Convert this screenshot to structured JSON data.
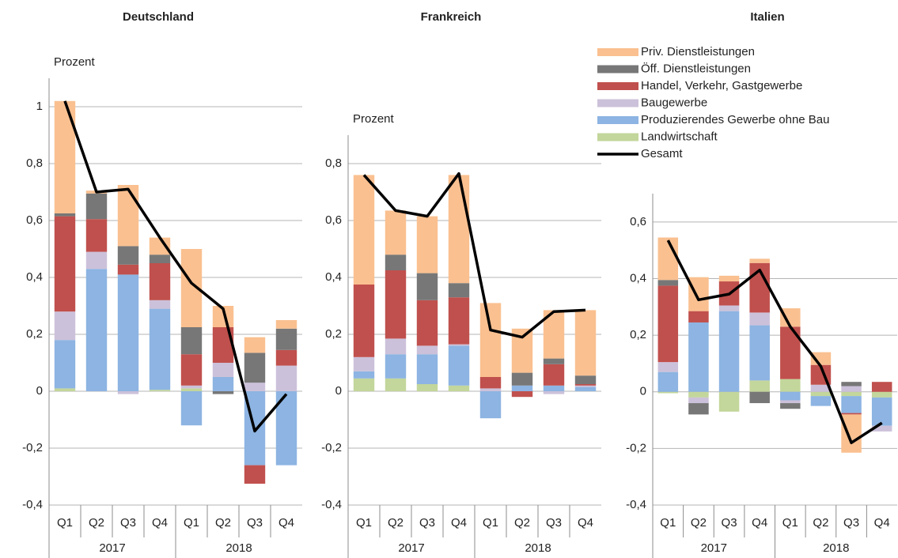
{
  "chart_data": [
    {
      "type": "bar",
      "stacked": true,
      "title": "Deutschland",
      "y_label": "Prozent",
      "categories": [
        "Q1",
        "Q2",
        "Q3",
        "Q4",
        "Q1",
        "Q2",
        "Q3",
        "Q4"
      ],
      "groups": [
        "2017",
        "2018"
      ],
      "ylim": [
        -0.4,
        1.1
      ],
      "yticks": [
        {
          "value": -0.4,
          "label": "-0,4"
        },
        {
          "value": -0.2,
          "label": "-0,2"
        },
        0,
        {
          "value": 0.2,
          "label": "0,2"
        },
        {
          "value": 0.4,
          "label": "0,4"
        },
        {
          "value": 0.6,
          "label": "0,6"
        },
        {
          "value": 0.8,
          "label": "0,8"
        },
        1
      ],
      "grid": true,
      "series": [
        {
          "color": "#fac090",
          "values": [
            0.395,
            0.01,
            0.215,
            0.06,
            0.275,
            0.075,
            0.055,
            0.03
          ]
        },
        {
          "color": "#777777",
          "values": [
            0.01,
            0.09,
            0.065,
            0.03,
            0.095,
            -0.01,
            0.105,
            0.075
          ]
        },
        {
          "color": "#c0504d",
          "values": [
            0.335,
            0.115,
            0.035,
            0.13,
            0.11,
            0.125,
            -0.065,
            0.055
          ]
        },
        {
          "color": "#ccc1da",
          "values": [
            0.1,
            0.06,
            -0.01,
            0.03,
            0.01,
            0.05,
            0.03,
            0.09
          ]
        },
        {
          "color": "#8db4e2",
          "values": [
            0.17,
            0.43,
            0.41,
            0.285,
            -0.12,
            0.05,
            -0.26,
            -0.26
          ]
        },
        {
          "color": "#c3d69b",
          "values": [
            0.01,
            0,
            0,
            0.005,
            0.01,
            0,
            0,
            0
          ]
        },
        {
          "type": "line",
          "color": "#000000",
          "values": [
            1.02,
            0.7,
            0.71,
            0.54,
            0.38,
            0.29,
            -0.14,
            -0.01
          ]
        }
      ]
    },
    {
      "type": "bar",
      "stacked": true,
      "title": "Frankreich",
      "y_label": "Prozent",
      "categories": [
        "Q1",
        "Q2",
        "Q3",
        "Q4",
        "Q1",
        "Q2",
        "Q3",
        "Q4"
      ],
      "groups": [
        "2017",
        "2018"
      ],
      "ylim": [
        -0.4,
        0.9
      ],
      "yticks": [
        {
          "value": -0.4,
          "label": "-0,4"
        },
        {
          "value": -0.2,
          "label": "-0,2"
        },
        0,
        {
          "value": 0.2,
          "label": "0,2"
        },
        {
          "value": 0.4,
          "label": "0,4"
        },
        {
          "value": 0.6,
          "label": "0,6"
        },
        {
          "value": 0.8,
          "label": "0,8"
        }
      ],
      "grid": true,
      "series": [
        {
          "color": "#fac090",
          "values": [
            0.385,
            0.155,
            0.2,
            0.38,
            0.26,
            0.155,
            0.17,
            0.23
          ]
        },
        {
          "color": "#777777",
          "values": [
            0,
            0.055,
            0.095,
            0.05,
            0,
            0.045,
            0.02,
            0.03
          ]
        },
        {
          "color": "#c0504d",
          "values": [
            0.255,
            0.24,
            0.16,
            0.165,
            0.04,
            -0.02,
            0.075,
            0.005
          ]
        },
        {
          "color": "#ccc1da",
          "values": [
            0.05,
            0.055,
            0.03,
            0.005,
            0.01,
            0,
            -0.01,
            0.005
          ]
        },
        {
          "color": "#8db4e2",
          "values": [
            0.025,
            0.085,
            0.105,
            0.14,
            -0.095,
            0.02,
            0.02,
            0.015
          ]
        },
        {
          "color": "#c3d69b",
          "values": [
            0.045,
            0.045,
            0.025,
            0.02,
            0,
            0,
            0,
            0
          ]
        },
        {
          "type": "line",
          "color": "#000000",
          "values": [
            0.76,
            0.635,
            0.615,
            0.765,
            0.215,
            0.19,
            0.28,
            0.285
          ]
        }
      ]
    },
    {
      "type": "bar",
      "stacked": true,
      "title": "Italien",
      "categories": [
        "Q1",
        "Q2",
        "Q3",
        "Q4",
        "Q1",
        "Q2",
        "Q3",
        "Q4"
      ],
      "groups": [
        "2017",
        "2018"
      ],
      "ylim": [
        -0.4,
        0.7
      ],
      "yticks": [
        {
          "value": -0.4,
          "label": "-0,4"
        },
        {
          "value": -0.2,
          "label": "-0,2"
        },
        0,
        {
          "value": 0.2,
          "label": "0,2"
        },
        {
          "value": 0.4,
          "label": "0,4"
        },
        {
          "value": 0.6,
          "label": "0,6"
        }
      ],
      "grid": true,
      "legend": "top-left",
      "series": [
        {
          "name": "Priv. Dienstleistungen",
          "color": "#fac090",
          "values": [
            0.15,
            0.12,
            0.02,
            0.015,
            0.065,
            0.045,
            -0.135,
            0
          ]
        },
        {
          "name": "Öff. Dienstleistungen",
          "color": "#777777",
          "values": [
            0.02,
            -0.04,
            0,
            -0.04,
            -0.02,
            0,
            0.015,
            0
          ]
        },
        {
          "name": "Handel, Verkehr, Gastgewerbe",
          "color": "#c0504d",
          "values": [
            0.27,
            0.04,
            0.085,
            0.175,
            0.185,
            0.07,
            -0.005,
            0.035
          ]
        },
        {
          "name": "Baugewerbe",
          "color": "#ccc1da",
          "values": [
            0.035,
            -0.02,
            0.02,
            0.045,
            -0.01,
            0.025,
            0.02,
            -0.02
          ]
        },
        {
          "name": "Produzierendes Gewerbe ohne Bau",
          "color": "#8db4e2",
          "values": [
            0.07,
            0.245,
            0.285,
            0.195,
            -0.03,
            -0.035,
            -0.06,
            -0.1
          ]
        },
        {
          "name": "Landwirtschaft",
          "color": "#c3d69b",
          "values": [
            -0.005,
            -0.02,
            -0.07,
            0.04,
            0.045,
            -0.015,
            -0.015,
            -0.02
          ]
        },
        {
          "name": "Gesamt",
          "type": "line",
          "color": "#000000",
          "values": [
            0.535,
            0.325,
            0.345,
            0.43,
            0.23,
            0.09,
            -0.18,
            -0.11
          ]
        }
      ]
    }
  ]
}
